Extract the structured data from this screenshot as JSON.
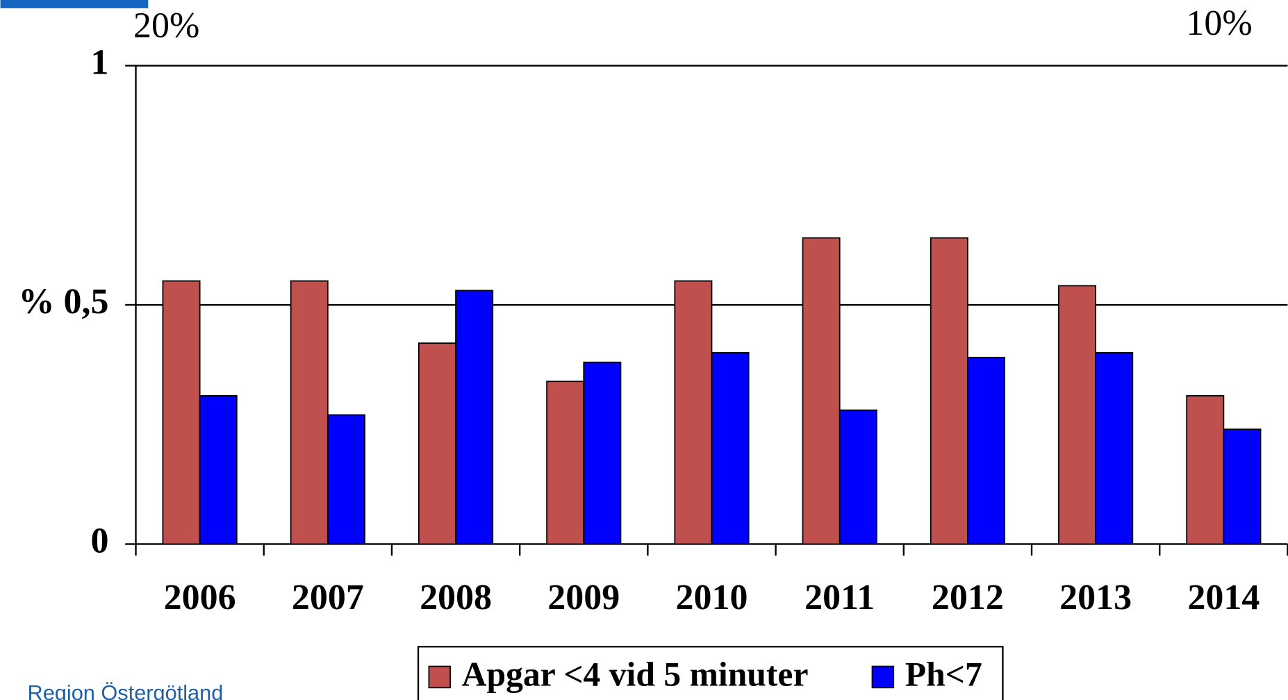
{
  "chart_data": {
    "type": "bar",
    "annotations": [
      "20%",
      "10%"
    ],
    "footer": "Region Östergötland",
    "categories": [
      "2006",
      "2007",
      "2008",
      "2009",
      "2010",
      "2011",
      "2012",
      "2013",
      "2014"
    ],
    "series": [
      {
        "name": "Apgar <4 vid 5 minuter",
        "color": "#c0504d",
        "values": [
          0.55,
          0.55,
          0.42,
          0.34,
          0.55,
          0.64,
          0.64,
          0.54,
          0.31
        ]
      },
      {
        "name": "Ph<7",
        "color": "#0000ff",
        "values": [
          0.31,
          0.27,
          0.53,
          0.38,
          0.4,
          0.28,
          0.39,
          0.4,
          0.24
        ]
      }
    ],
    "ylim": [
      0,
      1
    ],
    "yticks": [
      0,
      {
        "value": 0.5,
        "label": "% 0,5"
      },
      1
    ],
    "grid": true
  }
}
